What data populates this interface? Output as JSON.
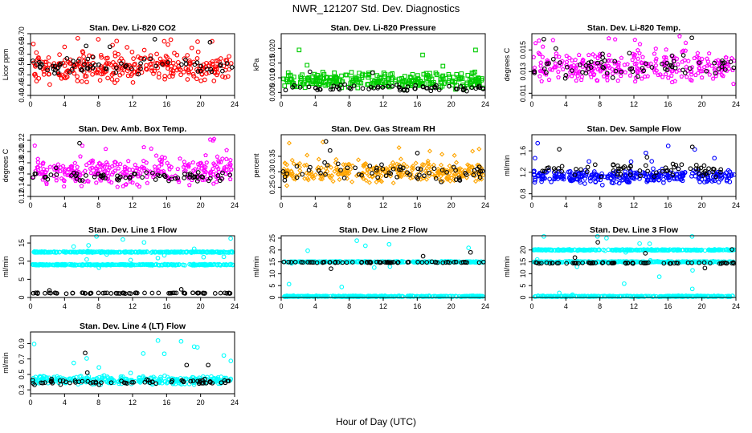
{
  "page": {
    "title": "NWR_121207  Std. Dev. Diagnostics",
    "xlabel": "Hour of Day (UTC)"
  },
  "colors": {
    "red": "#ff0000",
    "green": "#00cc00",
    "magenta": "#ff00ff",
    "orange": "#ffa500",
    "blue": "#0000ff",
    "cyan": "#00ffff",
    "black": "#000000"
  },
  "chart_data": [
    {
      "type": "scatter",
      "title": "Stan. Dev. Li-820 CO2",
      "ylabel": "Licor ppm",
      "xlim": [
        0,
        24
      ],
      "ylim": [
        0.4,
        0.7
      ],
      "xticks": [
        "0",
        "4",
        "8",
        "12",
        "16",
        "20",
        "24"
      ],
      "yticks": [
        "0.40",
        "0.45",
        "0.50",
        "0.55",
        "0.60",
        "0.65",
        "0.70"
      ],
      "series": [
        {
          "color": "red",
          "shape": "circle",
          "band": [
            0.44,
            0.63
          ]
        },
        {
          "color": "black",
          "shape": "circle",
          "band": [
            0.48,
            0.6
          ]
        }
      ]
    },
    {
      "type": "scatter",
      "title": "Stan. Dev. Li-820 Pressure",
      "ylabel": "kPa",
      "xlim": [
        0,
        24
      ],
      "ylim": [
        0.004,
        0.025
      ],
      "xticks": [
        "0",
        "4",
        "8",
        "12",
        "16",
        "20",
        "24"
      ],
      "yticks": [
        "0.005",
        "0.010",
        "0.015",
        "0.020"
      ],
      "series": [
        {
          "color": "green",
          "shape": "square",
          "band": [
            0.005,
            0.013
          ]
        },
        {
          "color": "black",
          "shape": "circle",
          "band": [
            0.005,
            0.008
          ]
        }
      ]
    },
    {
      "type": "scatter",
      "title": "Stan. Dev. Li-820 Temp.",
      "ylabel": "degrees C",
      "xlim": [
        0,
        24
      ],
      "ylim": [
        0.0108,
        0.0165
      ],
      "xticks": [
        "0",
        "4",
        "8",
        "12",
        "16",
        "20",
        "24"
      ],
      "yticks": [
        "0.011",
        "0.013",
        "0.015"
      ],
      "series": [
        {
          "color": "magenta",
          "shape": "pentagon",
          "band": [
            0.0115,
            0.0155
          ]
        },
        {
          "color": "black",
          "shape": "circle",
          "band": [
            0.012,
            0.015
          ]
        }
      ]
    },
    {
      "type": "scatter",
      "title": "Stan. Dev. Amb. Box Temp.",
      "ylabel": "degrees C",
      "xlim": [
        0,
        24
      ],
      "ylim": [
        0.12,
        0.23
      ],
      "xticks": [
        "0",
        "4",
        "8",
        "12",
        "16",
        "20",
        "24"
      ],
      "yticks": [
        "0.12",
        "0.14",
        "0.16",
        "0.18",
        "0.20",
        "0.22"
      ],
      "series": [
        {
          "color": "magenta",
          "shape": "pentagon",
          "band": [
            0.13,
            0.2
          ]
        },
        {
          "color": "black",
          "shape": "circle",
          "band": [
            0.14,
            0.17
          ]
        }
      ]
    },
    {
      "type": "scatter",
      "title": "Stan. Dev. Gas Stream RH",
      "ylabel": "percent",
      "xlim": [
        0,
        24
      ],
      "ylim": [
        0.22,
        0.42
      ],
      "xticks": [
        "0",
        "4",
        "8",
        "12",
        "16",
        "20",
        "24"
      ],
      "yticks": [
        "0.25",
        "0.30",
        "0.35"
      ],
      "series": [
        {
          "color": "orange",
          "shape": "diamond",
          "band": [
            0.25,
            0.35
          ]
        },
        {
          "color": "black",
          "shape": "circle",
          "band": [
            0.26,
            0.34
          ]
        }
      ]
    },
    {
      "type": "scatter",
      "title": "Stan. Dev. Sample Flow",
      "ylabel": "ml/min",
      "xlim": [
        0,
        24
      ],
      "ylim": [
        0.75,
        1.9
      ],
      "xticks": [
        "0",
        "4",
        "8",
        "12",
        "16",
        "20",
        "24"
      ],
      "yticks": [
        "0.8",
        "1.2",
        "1.6"
      ],
      "series": [
        {
          "color": "blue",
          "shape": "circle",
          "band": [
            0.95,
            1.3
          ]
        },
        {
          "color": "black",
          "shape": "circle",
          "band": [
            1.0,
            1.5
          ]
        }
      ]
    },
    {
      "type": "scatter",
      "title": "Stan. Dev. Line 1 Flow",
      "ylabel": "ml/min",
      "xlim": [
        0,
        24
      ],
      "ylim": [
        0,
        17
      ],
      "xticks": [
        "0",
        "4",
        "8",
        "12",
        "16",
        "20",
        "24"
      ],
      "yticks": [
        "0",
        "5",
        "10",
        "15"
      ],
      "series": [
        {
          "color": "cyan",
          "shape": "circle",
          "level": 12.5
        },
        {
          "color": "cyan",
          "shape": "circle",
          "level": 9.0
        },
        {
          "color": "black",
          "shape": "circle",
          "level": 1.2
        }
      ]
    },
    {
      "type": "scatter",
      "title": "Stan. Dev. Line 2 Flow",
      "ylabel": "ml/min",
      "xlim": [
        0,
        24
      ],
      "ylim": [
        0,
        26
      ],
      "xticks": [
        "0",
        "4",
        "8",
        "12",
        "16",
        "20",
        "24"
      ],
      "yticks": [
        "0",
        "5",
        "10",
        "15",
        "20",
        "25"
      ],
      "series": [
        {
          "color": "cyan",
          "shape": "circle",
          "level": 15.0
        },
        {
          "color": "cyan",
          "shape": "circle",
          "level": 0.5
        },
        {
          "color": "black",
          "shape": "circle",
          "level": 14.8
        }
      ]
    },
    {
      "type": "scatter",
      "title": "Stan. Dev. Line 3 Flow",
      "ylabel": "ml/min",
      "xlim": [
        0,
        24
      ],
      "ylim": [
        0,
        26
      ],
      "xticks": [
        "0",
        "4",
        "8",
        "12",
        "16",
        "20",
        "24"
      ],
      "yticks": [
        "0",
        "5",
        "10",
        "15",
        "20"
      ],
      "series": [
        {
          "color": "cyan",
          "shape": "circle",
          "level": 20.0
        },
        {
          "color": "cyan",
          "shape": "circle",
          "level": 15.0
        },
        {
          "color": "cyan",
          "shape": "circle",
          "level": 0.5
        },
        {
          "color": "black",
          "shape": "circle",
          "level": 14.5
        }
      ]
    },
    {
      "type": "scatter",
      "title": "Stan. Dev. Line 4 (LT) Flow",
      "ylabel": "ml/min",
      "xlim": [
        0,
        24
      ],
      "ylim": [
        0.25,
        1.05
      ],
      "xticks": [
        "0",
        "4",
        "8",
        "12",
        "16",
        "20",
        "24"
      ],
      "yticks": [
        "0.3",
        "0.5",
        "0.7",
        "0.9"
      ],
      "series": [
        {
          "color": "cyan",
          "shape": "circle",
          "band": [
            0.35,
            0.5
          ]
        },
        {
          "color": "black",
          "shape": "circle",
          "band": [
            0.35,
            0.45
          ]
        }
      ]
    }
  ]
}
